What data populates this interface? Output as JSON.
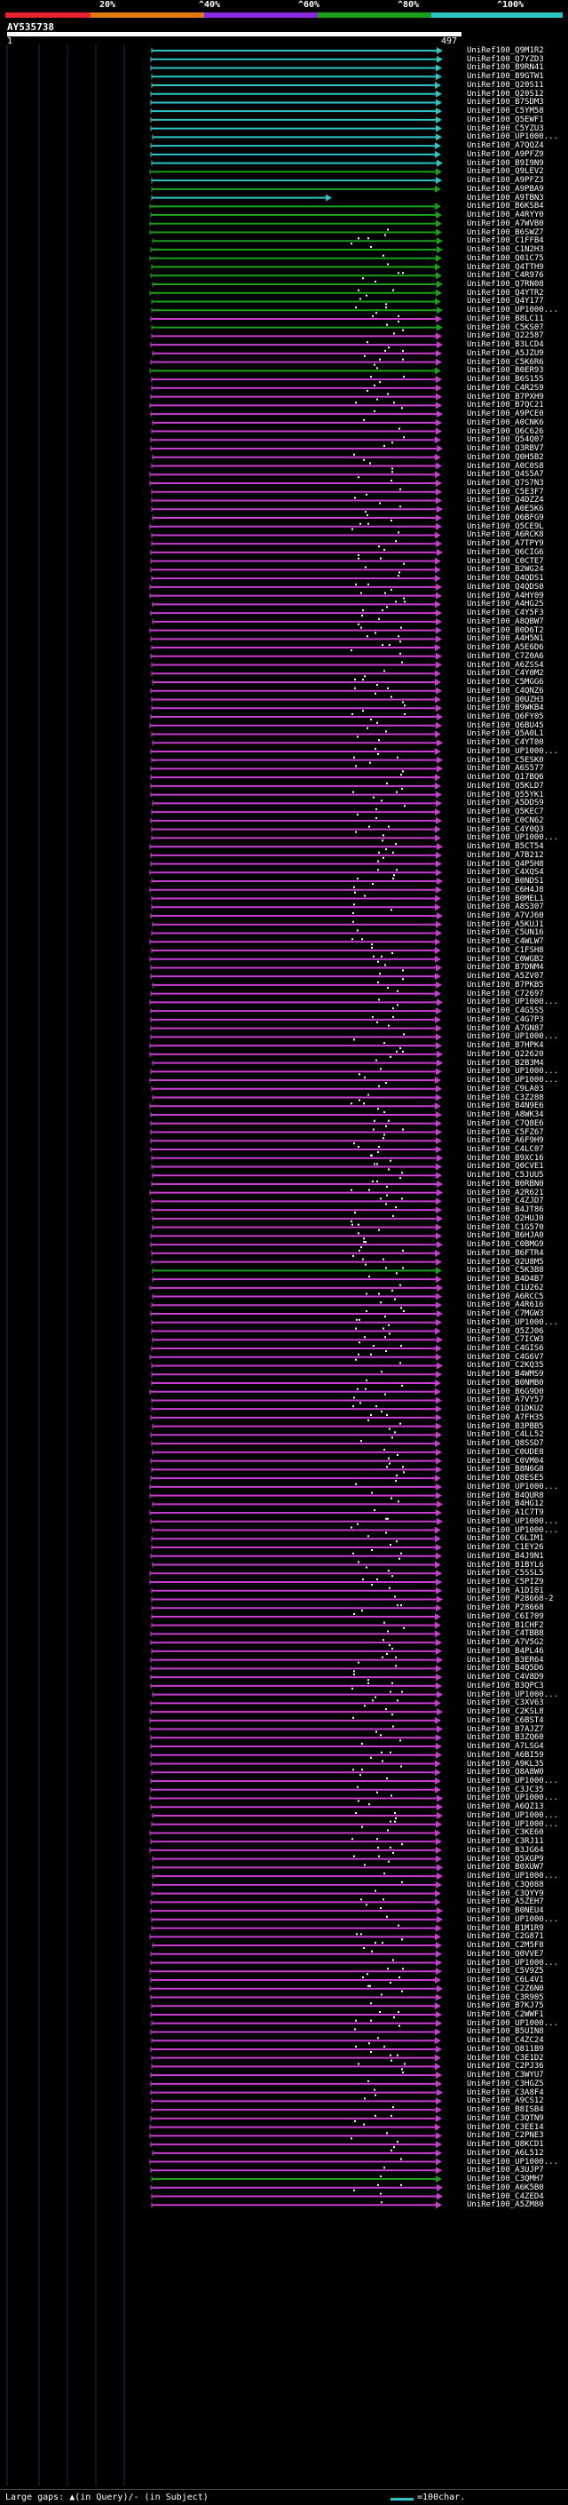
{
  "header": {
    "scale_labels": [
      "20%",
      "^40%",
      "^60%",
      "^80%",
      "^100%"
    ],
    "scale_colors": [
      "#e8222e",
      "#e07b10",
      "#8a2be2",
      "#1aa01a",
      "#2ec4c4"
    ],
    "query_name": "AY535738",
    "query_start": "1",
    "query_end": "497"
  },
  "hit_colors": {
    "cyan": "#2ec4c4",
    "green": "#1aa01a",
    "magenta": "#c83ccf"
  },
  "hits": [
    {
      "label": "UniRef100_Q9M1R2",
      "color": "cyan"
    },
    {
      "label": "UniRef100_Q7YZD3",
      "color": "cyan"
    },
    {
      "label": "UniRef100_B9RN41",
      "color": "cyan"
    },
    {
      "label": "UniRef100_B9GTW1",
      "color": "cyan"
    },
    {
      "label": "UniRef100_Q20S11",
      "color": "cyan"
    },
    {
      "label": "UniRef100_Q20S12",
      "color": "cyan"
    },
    {
      "label": "UniRef100_B7SDM3",
      "color": "cyan"
    },
    {
      "label": "UniRef100_C5YM58",
      "color": "cyan"
    },
    {
      "label": "UniRef100_Q5EWF1",
      "color": "cyan"
    },
    {
      "label": "UniRef100_C5YZU3",
      "color": "cyan"
    },
    {
      "label": "UniRef100_UP1000...",
      "color": "cyan"
    },
    {
      "label": "UniRef100_A7QQZ4",
      "color": "cyan"
    },
    {
      "label": "UniRef100_A9PFZ9",
      "color": "cyan"
    },
    {
      "label": "UniRef100_B9I9N9",
      "color": "cyan"
    },
    {
      "label": "UniRef100_Q9LEV2",
      "color": "green"
    },
    {
      "label": "UniRef100_A9PFZ3",
      "color": "cyan"
    },
    {
      "label": "UniRef100_A9PBA9",
      "color": "green"
    },
    {
      "label": "UniRef100_A9TBN3",
      "color": "cyan"
    },
    {
      "label": "UniRef100_B6KSB4",
      "color": "green"
    },
    {
      "label": "UniRef100_A4RYY0",
      "color": "green"
    },
    {
      "label": "UniRef100_A7WVB0",
      "color": "green"
    },
    {
      "label": "UniRef100_B6SWZ7",
      "color": "green"
    },
    {
      "label": "UniRef100_C1FFB4",
      "color": "green"
    },
    {
      "label": "UniRef100_C1N2H3",
      "color": "green"
    },
    {
      "label": "UniRef100_Q01C75",
      "color": "green"
    },
    {
      "label": "UniRef100_Q4TTH9",
      "color": "green"
    },
    {
      "label": "UniRef100_C4R976",
      "color": "green"
    },
    {
      "label": "UniRef100_Q7RN08",
      "color": "green"
    },
    {
      "label": "UniRef100_Q4YTR2",
      "color": "green"
    },
    {
      "label": "UniRef100_Q4Y177",
      "color": "green"
    },
    {
      "label": "UniRef100_UP1000...",
      "color": "green"
    },
    {
      "label": "UniRef100_B8LC11",
      "color": "magenta"
    },
    {
      "label": "UniRef100_C5KS07",
      "color": "green"
    },
    {
      "label": "UniRef100_Q22587",
      "color": "magenta"
    },
    {
      "label": "UniRef100_B3LCD4",
      "color": "magenta"
    },
    {
      "label": "UniRef100_A5JZU9",
      "color": "magenta"
    },
    {
      "label": "UniRef100_C5K6R6",
      "color": "magenta"
    },
    {
      "label": "UniRef100_B0ER93",
      "color": "green"
    },
    {
      "label": "UniRef100_B6S155",
      "color": "magenta"
    },
    {
      "label": "UniRef100_C4R2S9",
      "color": "magenta"
    },
    {
      "label": "UniRef100_B7PXH9",
      "color": "magenta"
    },
    {
      "label": "UniRef100_B7QC21",
      "color": "magenta"
    },
    {
      "label": "UniRef100_A9PCE0",
      "color": "magenta"
    },
    {
      "label": "UniRef100_A0CNK6",
      "color": "magenta"
    },
    {
      "label": "UniRef100_Q6C626",
      "color": "magenta"
    },
    {
      "label": "UniRef100_Q54Q07",
      "color": "magenta"
    },
    {
      "label": "UniRef100_Q3RBV7",
      "color": "magenta"
    },
    {
      "label": "UniRef100_Q0H5B2",
      "color": "magenta"
    },
    {
      "label": "UniRef100_A0C0S8",
      "color": "magenta"
    },
    {
      "label": "UniRef100_Q4S5A7",
      "color": "magenta"
    },
    {
      "label": "UniRef100_Q7S7N3",
      "color": "magenta"
    },
    {
      "label": "UniRef100_C5E3F7",
      "color": "magenta"
    },
    {
      "label": "UniRef100_Q4DZZ4",
      "color": "magenta"
    },
    {
      "label": "UniRef100_A0E5K6",
      "color": "magenta"
    },
    {
      "label": "UniRef100_Q6BFG9",
      "color": "magenta"
    },
    {
      "label": "UniRef100_Q5CE9L",
      "color": "magenta"
    },
    {
      "label": "UniRef100_A6RCK8",
      "color": "magenta"
    },
    {
      "label": "UniRef100_A7TPY9",
      "color": "magenta"
    },
    {
      "label": "UniRef100_Q6CIG6",
      "color": "magenta"
    },
    {
      "label": "UniRef100_C0CTE7",
      "color": "magenta"
    },
    {
      "label": "UniRef100_B2WG24",
      "color": "magenta"
    },
    {
      "label": "UniRef100_Q4QDS1",
      "color": "magenta"
    },
    {
      "label": "UniRef100_Q4QDS0",
      "color": "magenta"
    },
    {
      "label": "UniRef100_A4HY09",
      "color": "magenta"
    },
    {
      "label": "UniRef100_A4HG25",
      "color": "magenta"
    },
    {
      "label": "UniRef100_C4Y5F3",
      "color": "magenta"
    },
    {
      "label": "UniRef100_A8QBW7",
      "color": "magenta"
    },
    {
      "label": "UniRef100_B0D6T2",
      "color": "magenta"
    },
    {
      "label": "UniRef100_A4H5N1",
      "color": "magenta"
    },
    {
      "label": "UniRef100_A5E6D6",
      "color": "magenta"
    },
    {
      "label": "UniRef100_C7Z0A6",
      "color": "magenta"
    },
    {
      "label": "UniRef100_A6ZSS4",
      "color": "magenta"
    },
    {
      "label": "UniRef100_C4Y0M2",
      "color": "magenta"
    },
    {
      "label": "UniRef100_C5MGG6",
      "color": "magenta"
    },
    {
      "label": "UniRef100_C4QNZ6",
      "color": "magenta"
    },
    {
      "label": "UniRef100_Q0UZH3",
      "color": "magenta"
    },
    {
      "label": "UniRef100_B9WKB4",
      "color": "magenta"
    },
    {
      "label": "UniRef100_Q6FY05",
      "color": "magenta"
    },
    {
      "label": "UniRef100_Q6BU45",
      "color": "magenta"
    },
    {
      "label": "UniRef100_Q5A0L1",
      "color": "magenta"
    },
    {
      "label": "UniRef100_C4YT00",
      "color": "magenta"
    },
    {
      "label": "UniRef100_UP1000...",
      "color": "magenta"
    },
    {
      "label": "UniRef100_C5ESK0",
      "color": "magenta"
    },
    {
      "label": "UniRef100_A6S577",
      "color": "magenta"
    },
    {
      "label": "UniRef100_Q17BQ6",
      "color": "magenta"
    },
    {
      "label": "UniRef100_Q5KLD7",
      "color": "magenta"
    },
    {
      "label": "UniRef100_Q55YK1",
      "color": "magenta"
    },
    {
      "label": "UniRef100_A5DDS9",
      "color": "magenta"
    },
    {
      "label": "UniRef100_Q5KEC7",
      "color": "magenta"
    },
    {
      "label": "UniRef100_C0CN62",
      "color": "magenta"
    },
    {
      "label": "UniRef100_C4Y0Q3",
      "color": "magenta"
    },
    {
      "label": "UniRef100_UP1000...",
      "color": "magenta"
    },
    {
      "label": "UniRef100_B5CT54",
      "color": "magenta"
    },
    {
      "label": "UniRef100_A7B212",
      "color": "magenta"
    },
    {
      "label": "UniRef100_Q4P5H8",
      "color": "magenta"
    },
    {
      "label": "UniRef100_C4XQS4",
      "color": "magenta"
    },
    {
      "label": "UniRef100_B0NDS1",
      "color": "magenta"
    },
    {
      "label": "UniRef100_C6H4J8",
      "color": "magenta"
    },
    {
      "label": "UniRef100_B0MEL1",
      "color": "magenta"
    },
    {
      "label": "UniRef100_A8S307",
      "color": "magenta"
    },
    {
      "label": "UniRef100_A7VJ60",
      "color": "magenta"
    },
    {
      "label": "UniRef100_A5KUJ1",
      "color": "magenta"
    },
    {
      "label": "UniRef100_C5UN16",
      "color": "magenta"
    },
    {
      "label": "UniRef100_C4WLW7",
      "color": "magenta"
    },
    {
      "label": "UniRef100_C1FSH8",
      "color": "magenta"
    },
    {
      "label": "UniRef100_C0WGB2",
      "color": "magenta"
    },
    {
      "label": "UniRef100_B7DNM4",
      "color": "magenta"
    },
    {
      "label": "UniRef100_A5ZV07",
      "color": "magenta"
    },
    {
      "label": "UniRef100_B7PKB5",
      "color": "magenta"
    },
    {
      "label": "UniRef100_C72697",
      "color": "magenta"
    },
    {
      "label": "UniRef100_UP1000...",
      "color": "magenta"
    },
    {
      "label": "UniRef100_C4G5S5",
      "color": "magenta"
    },
    {
      "label": "UniRef100_C4G7P3",
      "color": "magenta"
    },
    {
      "label": "UniRef100_A7GN87",
      "color": "magenta"
    },
    {
      "label": "UniRef100_UP1000...",
      "color": "magenta"
    },
    {
      "label": "UniRef100_B7HPK4",
      "color": "magenta"
    },
    {
      "label": "UniRef100_Q22620",
      "color": "magenta"
    },
    {
      "label": "UniRef100_B2B3M4",
      "color": "magenta"
    },
    {
      "label": "UniRef100_UP1000...",
      "color": "magenta"
    },
    {
      "label": "UniRef100_UP1000...",
      "color": "magenta"
    },
    {
      "label": "UniRef100_C9LA03",
      "color": "magenta"
    },
    {
      "label": "UniRef100_C3Z288",
      "color": "magenta"
    },
    {
      "label": "UniRef100_B4N9E6",
      "color": "magenta"
    },
    {
      "label": "UniRef100_A8WK34",
      "color": "magenta"
    },
    {
      "label": "UniRef100_C7Q8E6",
      "color": "magenta"
    },
    {
      "label": "UniRef100_C5FZ67",
      "color": "magenta"
    },
    {
      "label": "UniRef100_A6F9H9",
      "color": "magenta"
    },
    {
      "label": "UniRef100_C4LC07",
      "color": "magenta"
    },
    {
      "label": "UniRef100_B9XC16",
      "color": "magenta"
    },
    {
      "label": "UniRef100_Q0CVE1",
      "color": "magenta"
    },
    {
      "label": "UniRef100_C5JUU5",
      "color": "magenta"
    },
    {
      "label": "UniRef100_B0RBN0",
      "color": "magenta"
    },
    {
      "label": "UniRef100_A2R621",
      "color": "magenta"
    },
    {
      "label": "UniRef100_C4ZJD7",
      "color": "magenta"
    },
    {
      "label": "UniRef100_B4JT86",
      "color": "magenta"
    },
    {
      "label": "UniRef100_Q2HUJ0",
      "color": "magenta"
    },
    {
      "label": "UniRef100_C1G570",
      "color": "magenta"
    },
    {
      "label": "UniRef100_B6HJA0",
      "color": "magenta"
    },
    {
      "label": "UniRef100_C0BMG9",
      "color": "magenta"
    },
    {
      "label": "UniRef100_B6FTR4",
      "color": "magenta"
    },
    {
      "label": "UniRef100_Q2U8M5",
      "color": "magenta"
    },
    {
      "label": "UniRef100_C5K3B8",
      "color": "green"
    },
    {
      "label": "UniRef100_B4D4B7",
      "color": "magenta"
    },
    {
      "label": "UniRef100_C1U262",
      "color": "magenta"
    },
    {
      "label": "UniRef100_A6RCC5",
      "color": "magenta"
    },
    {
      "label": "UniRef100_A4R616",
      "color": "magenta"
    },
    {
      "label": "UniRef100_C7MGW3",
      "color": "magenta"
    },
    {
      "label": "UniRef100_UP1000...",
      "color": "magenta"
    },
    {
      "label": "UniRef100_Q5ZJ06",
      "color": "magenta"
    },
    {
      "label": "UniRef100_C7ICW3",
      "color": "magenta"
    },
    {
      "label": "UniRef100_C4GIS6",
      "color": "magenta"
    },
    {
      "label": "UniRef100_C4G6V7",
      "color": "magenta"
    },
    {
      "label": "UniRef100_C2KQ35",
      "color": "magenta"
    },
    {
      "label": "UniRef100_B4WMS9",
      "color": "magenta"
    },
    {
      "label": "UniRef100_B0NMB0",
      "color": "magenta"
    },
    {
      "label": "UniRef100_B6G9D0",
      "color": "magenta"
    },
    {
      "label": "UniRef100_A7VY57",
      "color": "magenta"
    },
    {
      "label": "UniRef100_Q1DKU2",
      "color": "magenta"
    },
    {
      "label": "UniRef100_A7FH35",
      "color": "magenta"
    },
    {
      "label": "UniRef100_B3PBB5",
      "color": "magenta"
    },
    {
      "label": "UniRef100_C4LL52",
      "color": "magenta"
    },
    {
      "label": "UniRef100_Q8SSD7",
      "color": "magenta"
    },
    {
      "label": "UniRef100_C0UDE8",
      "color": "magenta"
    },
    {
      "label": "UniRef100_C0VM04",
      "color": "magenta"
    },
    {
      "label": "UniRef100_B8N6G8",
      "color": "magenta"
    },
    {
      "label": "UniRef100_Q8ESE5",
      "color": "magenta"
    },
    {
      "label": "UniRef100_UP1000...",
      "color": "magenta"
    },
    {
      "label": "UniRef100_B4QUR8",
      "color": "magenta"
    },
    {
      "label": "UniRef100_B4HG12",
      "color": "magenta"
    },
    {
      "label": "UniRef100_A1C7T9",
      "color": "magenta"
    },
    {
      "label": "UniRef100_UP1000...",
      "color": "magenta"
    },
    {
      "label": "UniRef100_UP1000...",
      "color": "magenta"
    },
    {
      "label": "UniRef100_C6LIM1",
      "color": "magenta"
    },
    {
      "label": "UniRef100_C1EY26",
      "color": "magenta"
    },
    {
      "label": "UniRef100_B4J9N1",
      "color": "magenta"
    },
    {
      "label": "UniRef100_B1BYL6",
      "color": "magenta"
    },
    {
      "label": "UniRef100_C5SSL5",
      "color": "magenta"
    },
    {
      "label": "UniRef100_C5PIZ9",
      "color": "magenta"
    },
    {
      "label": "UniRef100_A1DI01",
      "color": "magenta"
    },
    {
      "label": "UniRef100_P28668-2",
      "color": "magenta"
    },
    {
      "label": "UniRef100_P28668",
      "color": "magenta"
    },
    {
      "label": "UniRef100_C6I709",
      "color": "magenta"
    },
    {
      "label": "UniRef100_B1CHF2",
      "color": "magenta"
    },
    {
      "label": "UniRef100_C4TBB8",
      "color": "magenta"
    },
    {
      "label": "UniRef100_A7V5G2",
      "color": "magenta"
    },
    {
      "label": "UniRef100_B4PL46",
      "color": "magenta"
    },
    {
      "label": "UniRef100_B3ER64",
      "color": "magenta"
    },
    {
      "label": "UniRef100_B4Q5D6",
      "color": "magenta"
    },
    {
      "label": "UniRef100_C4V8D9",
      "color": "magenta"
    },
    {
      "label": "UniRef100_B3QPC3",
      "color": "magenta"
    },
    {
      "label": "UniRef100_UP1000...",
      "color": "magenta"
    },
    {
      "label": "UniRef100_C3XV63",
      "color": "magenta"
    },
    {
      "label": "UniRef100_C2KSL8",
      "color": "magenta"
    },
    {
      "label": "UniRef100_C6BST4",
      "color": "magenta"
    },
    {
      "label": "UniRef100_B7AJZ7",
      "color": "magenta"
    },
    {
      "label": "UniRef100_B3ZQ60",
      "color": "magenta"
    },
    {
      "label": "UniRef100_A7LSG4",
      "color": "magenta"
    },
    {
      "label": "UniRef100_A6BI59",
      "color": "magenta"
    },
    {
      "label": "UniRef100_A9KL35",
      "color": "magenta"
    },
    {
      "label": "UniRef100_Q8A8W0",
      "color": "magenta"
    },
    {
      "label": "UniRef100_UP1000...",
      "color": "magenta"
    },
    {
      "label": "UniRef100_C3JC35",
      "color": "magenta"
    },
    {
      "label": "UniRef100_UP1000...",
      "color": "magenta"
    },
    {
      "label": "UniRef100_A6QZ13",
      "color": "magenta"
    },
    {
      "label": "UniRef100_UP1000...",
      "color": "magenta"
    },
    {
      "label": "UniRef100_UP1000...",
      "color": "magenta"
    },
    {
      "label": "UniRef100_C3KE60",
      "color": "magenta"
    },
    {
      "label": "UniRef100_C3RJ11",
      "color": "magenta"
    },
    {
      "label": "UniRef100_B3JG64",
      "color": "magenta"
    },
    {
      "label": "UniRef100_Q5XGP9",
      "color": "magenta"
    },
    {
      "label": "UniRef100_B0XUW7",
      "color": "magenta"
    },
    {
      "label": "UniRef100_UP1000...",
      "color": "magenta"
    },
    {
      "label": "UniRef100_C3Q088",
      "color": "magenta"
    },
    {
      "label": "UniRef100_C3QYY9",
      "color": "magenta"
    },
    {
      "label": "UniRef100_A5ZEH7",
      "color": "magenta"
    },
    {
      "label": "UniRef100_B0NEU4",
      "color": "magenta"
    },
    {
      "label": "UniRef100_UP1000...",
      "color": "magenta"
    },
    {
      "label": "UniRef100_B1M1R9",
      "color": "magenta"
    },
    {
      "label": "UniRef100_C2G871",
      "color": "magenta"
    },
    {
      "label": "UniRef100_C2M5F8",
      "color": "magenta"
    },
    {
      "label": "UniRef100_Q0VVE7",
      "color": "magenta"
    },
    {
      "label": "UniRef100_UP1000...",
      "color": "magenta"
    },
    {
      "label": "UniRef100_C5V9Z5",
      "color": "magenta"
    },
    {
      "label": "UniRef100_C6L4V1",
      "color": "magenta"
    },
    {
      "label": "UniRef100_C2Z6N0",
      "color": "magenta"
    },
    {
      "label": "UniRef100_C3R905",
      "color": "magenta"
    },
    {
      "label": "UniRef100_B7KJ75",
      "color": "magenta"
    },
    {
      "label": "UniRef100_C2WWF1",
      "color": "magenta"
    },
    {
      "label": "UniRef100_UP1000...",
      "color": "magenta"
    },
    {
      "label": "UniRef100_B5UIN8",
      "color": "magenta"
    },
    {
      "label": "UniRef100_C4ZC24",
      "color": "magenta"
    },
    {
      "label": "UniRef100_Q811B9",
      "color": "magenta"
    },
    {
      "label": "UniRef100_C3E1D2",
      "color": "magenta"
    },
    {
      "label": "UniRef100_C2PJ36",
      "color": "magenta"
    },
    {
      "label": "UniRef100_C3WYU7",
      "color": "magenta"
    },
    {
      "label": "UniRef100_C3HGZ5",
      "color": "magenta"
    },
    {
      "label": "UniRef100_C3A8F4",
      "color": "magenta"
    },
    {
      "label": "UniRef100_A9CS12",
      "color": "magenta"
    },
    {
      "label": "UniRef100_B8ISB4",
      "color": "magenta"
    },
    {
      "label": "UniRef100_C3QTN9",
      "color": "magenta"
    },
    {
      "label": "UniRef100_C3EE14",
      "color": "magenta"
    },
    {
      "label": "UniRef100_C2PNE3",
      "color": "magenta"
    },
    {
      "label": "UniRef100_Q8KCD1",
      "color": "magenta"
    },
    {
      "label": "UniRef100_A6L512",
      "color": "magenta"
    },
    {
      "label": "UniRef100_UP1000...",
      "color": "magenta"
    },
    {
      "label": "UniRef100_A3UJP7",
      "color": "magenta"
    },
    {
      "label": "UniRef100_C3QMH7",
      "color": "green"
    },
    {
      "label": "UniRef100_A6K5B0",
      "color": "magenta"
    },
    {
      "label": "UniRef100_C4ZED4",
      "color": "magenta"
    },
    {
      "label": "UniRef100_A5ZM80",
      "color": "magenta"
    }
  ],
  "footer": {
    "legend": "Large gaps: ▲(in Query)/- (in Subject)",
    "scale": "=100char."
  }
}
